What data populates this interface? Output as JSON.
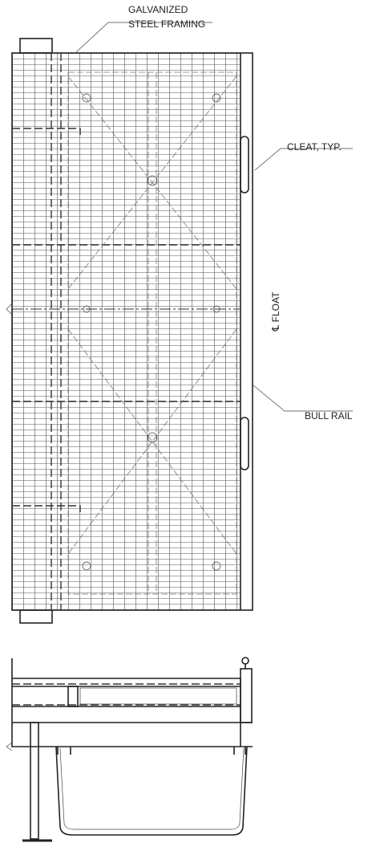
{
  "annotations": [
    {
      "lines": [
        "GALVANIZED",
        "STEEL FRAMING"
      ]
    },
    {
      "lines": [
        "CLEAT, TYP."
      ]
    },
    {
      "lines": [
        "℄ FLOAT"
      ]
    },
    {
      "lines": [
        "BULL RAIL"
      ]
    }
  ]
}
